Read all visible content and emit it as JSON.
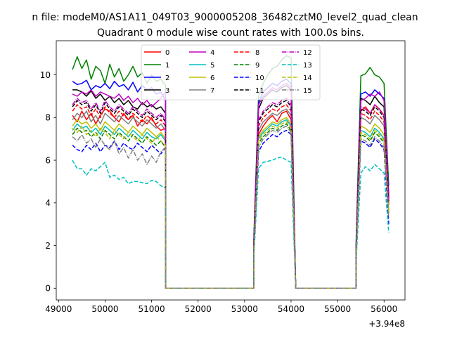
{
  "suptitle": "n file: modeM0/AS1A11_049T03_9000005208_36482cztM0_level2_quad_clean",
  "chart_data": {
    "type": "line",
    "title": "Quadrant 0 module wise count rates with 100.0s bins.",
    "xlabel": "",
    "ylabel": "",
    "x_offset_label": "+3.94e8",
    "xlim": [
      48950,
      56450
    ],
    "ylim": [
      -0.55,
      11.6
    ],
    "xticks": [
      49000,
      50000,
      51000,
      52000,
      53000,
      54000,
      55000,
      56000
    ],
    "xtick_labels": [
      "49000",
      "50000",
      "51000",
      "52000",
      "53000",
      "54000",
      "55000",
      "56000"
    ],
    "yticks": [
      0,
      2,
      4,
      6,
      8,
      10
    ],
    "ytick_labels": [
      "0",
      "2",
      "4",
      "6",
      "8",
      "10"
    ],
    "grid": false,
    "legend_position": "top-center",
    "legend_columns": 4,
    "segments": [
      {
        "start": 49300,
        "step": 100,
        "count": 21,
        "tail": [
          51300
        ]
      },
      {
        "start": 53200,
        "step": 100,
        "count": 9,
        "tail": [
          54100
        ]
      },
      {
        "start": 55400,
        "step": 100,
        "count": 8,
        "tail": []
      }
    ],
    "zero_gaps": [
      [
        51300,
        53200
      ],
      [
        54100,
        55400
      ]
    ],
    "series": [
      {
        "name": "0",
        "color": "#ff0000",
        "dash": "solid",
        "seg1": [
          8.1,
          7.8,
          8.3,
          7.9,
          8.2,
          7.7,
          8.1,
          8.4,
          8.3,
          8.0,
          7.8,
          8.2,
          7.9,
          8.1,
          7.6,
          7.9,
          7.7,
          8.0,
          7.6,
          7.4,
          7.5
        ],
        "seg2": [
          2.0,
          7.2,
          7.6,
          7.9,
          8.1,
          7.8,
          8.2,
          8.3,
          7.9
        ],
        "seg3": [
          1.8,
          8.3,
          8.5,
          8.2,
          8.6,
          8.4,
          8.1,
          4.0
        ]
      },
      {
        "name": "1",
        "color": "#008000",
        "dash": "solid",
        "seg1": [
          10.25,
          10.85,
          10.3,
          10.7,
          9.8,
          10.4,
          10.2,
          9.6,
          10.5,
          9.9,
          10.3,
          9.7,
          10.0,
          10.4,
          9.9,
          10.1,
          9.6,
          10.0,
          9.7,
          9.8,
          9.5
        ],
        "seg2": [
          2.5,
          9.0,
          9.6,
          10.0,
          10.3,
          10.4,
          10.7,
          10.9,
          10.8
        ],
        "seg3": [
          2.4,
          9.95,
          10.05,
          10.35,
          10.0,
          9.9,
          9.6,
          4.8
        ]
      },
      {
        "name": "2",
        "color": "#0000ff",
        "dash": "solid",
        "seg1": [
          9.7,
          9.55,
          9.6,
          9.75,
          9.3,
          9.5,
          9.4,
          9.6,
          9.35,
          9.7,
          9.45,
          9.55,
          9.3,
          9.65,
          9.2,
          9.5,
          9.3,
          9.4,
          9.1,
          9.2,
          8.8
        ],
        "seg2": [
          2.3,
          8.7,
          9.2,
          9.4,
          9.6,
          9.5,
          9.7,
          9.8,
          9.6
        ],
        "seg3": [
          2.2,
          9.1,
          9.2,
          9.0,
          9.3,
          9.1,
          8.9,
          4.4
        ]
      },
      {
        "name": "3",
        "color": "#000000",
        "dash": "solid",
        "seg1": [
          9.3,
          9.3,
          9.2,
          9.0,
          9.25,
          8.9,
          9.1,
          8.8,
          9.0,
          8.7,
          8.9,
          8.6,
          8.8,
          8.5,
          8.4,
          8.7,
          8.5,
          8.6,
          8.4,
          8.5,
          8.2
        ],
        "seg2": [
          2.2,
          8.4,
          8.9,
          9.1,
          9.3,
          9.2,
          9.4,
          9.5,
          9.3
        ],
        "seg3": [
          2.1,
          8.9,
          8.8,
          8.6,
          9.0,
          8.7,
          8.5,
          4.2
        ]
      },
      {
        "name": "4",
        "color": "#bf00bf",
        "dash": "solid",
        "seg1": [
          9.1,
          9.0,
          9.2,
          9.1,
          9.3,
          9.0,
          9.2,
          9.1,
          9.0,
          8.9,
          9.1,
          8.8,
          9.0,
          8.7,
          8.9,
          8.6,
          8.8,
          8.5,
          8.7,
          8.9,
          9.2
        ],
        "seg2": [
          2.2,
          8.6,
          9.0,
          9.2,
          9.4,
          9.3,
          9.5,
          9.6,
          9.4
        ],
        "seg3": [
          2.1,
          8.8,
          8.9,
          9.1,
          9.0,
          9.2,
          8.8,
          4.3
        ]
      },
      {
        "name": "5",
        "color": "#00bfbf",
        "dash": "solid",
        "seg1": [
          7.4,
          7.7,
          7.5,
          7.6,
          7.3,
          7.5,
          7.2,
          7.6,
          7.4,
          7.2,
          7.5,
          7.3,
          7.1,
          7.4,
          7.2,
          7.0,
          7.3,
          7.1,
          7.0,
          7.2,
          6.9
        ],
        "seg2": [
          1.9,
          7.0,
          7.3,
          7.5,
          7.7,
          7.6,
          7.8,
          7.9,
          7.6
        ],
        "seg3": [
          1.7,
          7.4,
          7.3,
          7.1,
          7.5,
          7.3,
          7.0,
          3.6
        ]
      },
      {
        "name": "6",
        "color": "#bfbf00",
        "dash": "solid",
        "seg1": [
          7.6,
          7.9,
          7.7,
          7.8,
          7.5,
          7.7,
          7.4,
          7.8,
          7.6,
          7.4,
          7.7,
          7.5,
          7.3,
          7.6,
          7.4,
          7.2,
          7.5,
          7.3,
          7.1,
          7.3,
          7.0
        ],
        "seg2": [
          1.9,
          7.1,
          7.4,
          7.6,
          7.8,
          7.7,
          7.9,
          8.0,
          7.7
        ],
        "seg3": [
          1.8,
          7.6,
          7.5,
          7.3,
          7.7,
          7.5,
          7.2,
          3.7
        ]
      },
      {
        "name": "7",
        "color": "#808080",
        "dash": "solid",
        "seg1": [
          7.9,
          8.2,
          8.0,
          8.3,
          7.8,
          8.1,
          7.7,
          8.2,
          8.0,
          7.8,
          8.1,
          7.9,
          7.7,
          8.0,
          7.8,
          7.6,
          7.9,
          7.7,
          7.5,
          7.7,
          7.4
        ],
        "seg2": [
          2.0,
          7.4,
          7.8,
          8.0,
          8.2,
          8.1,
          8.3,
          8.4,
          8.1
        ],
        "seg3": [
          1.9,
          8.0,
          7.9,
          7.7,
          8.1,
          7.9,
          7.6,
          3.9
        ]
      },
      {
        "name": "8",
        "color": "#ff0000",
        "dash": "dashed",
        "seg1": [
          8.3,
          8.6,
          8.4,
          8.5,
          8.1,
          8.4,
          8.0,
          8.5,
          8.2,
          8.0,
          8.3,
          8.1,
          7.9,
          8.2,
          8.0,
          7.8,
          8.1,
          7.9,
          7.7,
          7.9,
          7.6
        ],
        "seg2": [
          2.1,
          7.6,
          8.0,
          8.2,
          8.4,
          8.3,
          8.5,
          8.6,
          8.3
        ],
        "seg3": [
          1.9,
          8.2,
          8.1,
          7.9,
          8.3,
          8.1,
          7.8,
          4.0
        ]
      },
      {
        "name": "9",
        "color": "#008000",
        "dash": "dashed",
        "seg1": [
          7.2,
          7.5,
          7.3,
          7.4,
          7.1,
          7.3,
          7.0,
          7.4,
          7.2,
          7.0,
          7.3,
          7.1,
          6.9,
          7.2,
          7.0,
          6.8,
          7.1,
          6.9,
          6.7,
          6.9,
          6.6
        ],
        "seg2": [
          1.8,
          6.8,
          7.1,
          7.3,
          7.5,
          7.4,
          7.6,
          7.7,
          7.4
        ],
        "seg3": [
          1.7,
          7.2,
          7.1,
          6.9,
          7.3,
          7.1,
          6.8,
          3.5
        ]
      },
      {
        "name": "10",
        "color": "#0000ff",
        "dash": "dashed",
        "seg1": [
          6.7,
          6.5,
          6.4,
          6.7,
          6.5,
          6.8,
          6.4,
          6.7,
          6.6,
          6.9,
          6.5,
          6.8,
          6.6,
          6.5,
          6.8,
          6.6,
          6.4,
          6.7,
          6.5,
          6.3,
          6.6
        ],
        "seg2": [
          1.7,
          6.4,
          6.8,
          7.0,
          7.2,
          7.1,
          7.3,
          7.4,
          7.2
        ],
        "seg3": [
          1.6,
          6.9,
          6.8,
          6.6,
          7.0,
          6.8,
          6.5,
          3.0
        ]
      },
      {
        "name": "11",
        "color": "#000000",
        "dash": "dashed",
        "seg1": [
          8.5,
          8.8,
          8.6,
          8.7,
          8.3,
          8.6,
          8.2,
          8.7,
          8.4,
          8.2,
          8.5,
          8.3,
          8.1,
          8.4,
          8.2,
          8.0,
          8.3,
          8.1,
          7.9,
          8.1,
          7.8
        ],
        "seg2": [
          2.1,
          7.8,
          8.2,
          8.4,
          8.6,
          8.5,
          8.7,
          8.8,
          8.5
        ],
        "seg3": [
          2.0,
          8.4,
          8.3,
          8.1,
          8.5,
          8.3,
          8.0,
          4.1
        ]
      },
      {
        "name": "12",
        "color": "#bf00bf",
        "dash": "dashdot",
        "seg1": [
          8.6,
          8.9,
          8.7,
          8.8,
          8.4,
          8.7,
          8.3,
          8.8,
          8.5,
          8.3,
          8.6,
          8.4,
          8.2,
          8.5,
          8.3,
          8.1,
          8.4,
          8.2,
          8.0,
          8.2,
          7.9
        ],
        "seg2": [
          2.1,
          7.9,
          8.3,
          8.5,
          8.7,
          8.6,
          8.8,
          8.9,
          8.6
        ],
        "seg3": [
          2.0,
          8.5,
          8.4,
          8.2,
          8.6,
          8.4,
          8.1,
          4.1
        ]
      },
      {
        "name": "13",
        "color": "#00bfbf",
        "dash": "dashed",
        "seg1": [
          6.0,
          5.6,
          5.6,
          5.3,
          5.6,
          5.5,
          5.7,
          5.9,
          5.2,
          5.3,
          5.1,
          5.2,
          4.9,
          5.0,
          5.0,
          4.95,
          4.9,
          5.05,
          5.0,
          4.8,
          4.7
        ],
        "seg2": [
          1.5,
          5.6,
          5.9,
          5.95,
          6.0,
          6.1,
          6.15,
          6.0,
          5.9
        ],
        "seg3": [
          1.3,
          5.4,
          5.7,
          5.5,
          5.8,
          5.6,
          5.4,
          2.6
        ]
      },
      {
        "name": "14",
        "color": "#bfbf00",
        "dash": "dashed",
        "seg1": [
          7.5,
          7.3,
          7.6,
          7.2,
          7.4,
          7.1,
          7.5,
          7.3,
          7.0,
          7.4,
          7.2,
          7.0,
          7.3,
          7.1,
          6.9,
          7.2,
          7.0,
          6.8,
          7.1,
          6.9,
          6.7
        ],
        "seg2": [
          1.8,
          6.9,
          7.2,
          7.4,
          7.6,
          7.5,
          7.7,
          7.8,
          7.5
        ],
        "seg3": [
          1.7,
          7.3,
          7.2,
          7.0,
          7.4,
          7.2,
          6.9,
          3.5
        ]
      },
      {
        "name": "15",
        "color": "#808080",
        "dash": "dashdot",
        "seg1": [
          7.1,
          6.9,
          7.2,
          6.8,
          7.0,
          6.6,
          7.0,
          6.7,
          6.5,
          6.9,
          6.3,
          6.6,
          6.1,
          6.5,
          6.0,
          6.3,
          5.8,
          6.2,
          5.9,
          6.4,
          6.6
        ],
        "seg2": [
          1.7,
          6.6,
          7.0,
          7.2,
          7.4,
          7.3,
          7.5,
          7.6,
          7.3
        ],
        "seg3": [
          1.6,
          7.0,
          6.9,
          6.7,
          7.1,
          6.9,
          6.6,
          3.3
        ]
      }
    ]
  }
}
